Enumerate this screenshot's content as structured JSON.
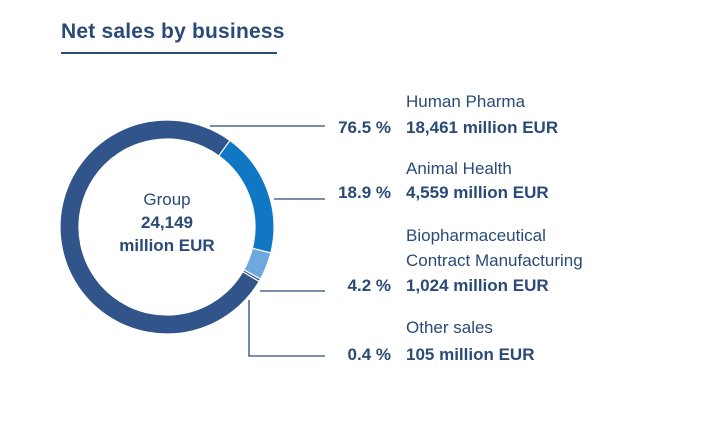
{
  "title": "Net sales by business",
  "center": {
    "line1": "Group",
    "line2": "24,149",
    "line3": "million EUR"
  },
  "chart_data": {
    "type": "pie",
    "title": "Net sales by business",
    "total": {
      "label": "Group",
      "value": 24149,
      "unit": "million EUR"
    },
    "series": [
      {
        "name": "Human Pharma",
        "percent": 76.5,
        "value": 18461,
        "pct_label": "76.5 %",
        "value_label": "18,461 million EUR",
        "color": "#31548a"
      },
      {
        "name": "Animal Health",
        "percent": 18.9,
        "value": 4559,
        "pct_label": "18.9 %",
        "value_label": "4,559 million EUR",
        "color": "#0f77c4"
      },
      {
        "name": "Biopharmaceutical Contract Manufacturing",
        "name_line1": "Biopharmaceutical",
        "name_line2": "Contract Manufacturing",
        "percent": 4.2,
        "value": 1024,
        "pct_label": "4.2 %",
        "value_label": "1,024 million EUR",
        "color": "#6ea8de"
      },
      {
        "name": "Other sales",
        "percent": 0.4,
        "value": 105,
        "pct_label": "0.4 %",
        "value_label": "105 million EUR",
        "color": "#31548a"
      }
    ]
  }
}
